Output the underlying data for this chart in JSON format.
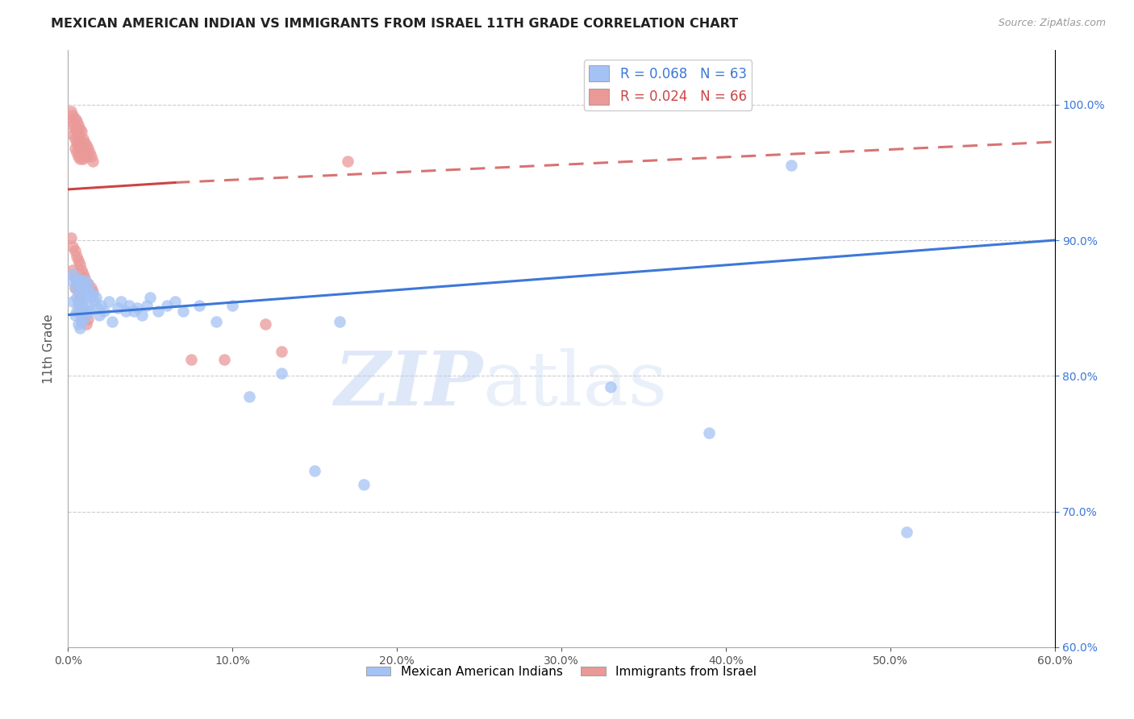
{
  "title": "MEXICAN AMERICAN INDIAN VS IMMIGRANTS FROM ISRAEL 11TH GRADE CORRELATION CHART",
  "source": "Source: ZipAtlas.com",
  "ylabel_label": "11th Grade",
  "xlim": [
    0.0,
    0.6
  ],
  "ylim": [
    0.6,
    1.04
  ],
  "legend_entries": [
    {
      "label": "R = 0.068   N = 63",
      "color": "#a4c2f4"
    },
    {
      "label": "R = 0.024   N = 66",
      "color": "#ea9999"
    }
  ],
  "blue_scatter": [
    [
      0.002,
      0.87
    ],
    [
      0.003,
      0.875
    ],
    [
      0.003,
      0.855
    ],
    [
      0.004,
      0.865
    ],
    [
      0.004,
      0.845
    ],
    [
      0.005,
      0.872
    ],
    [
      0.005,
      0.858
    ],
    [
      0.005,
      0.848
    ],
    [
      0.006,
      0.868
    ],
    [
      0.006,
      0.852
    ],
    [
      0.006,
      0.838
    ],
    [
      0.007,
      0.862
    ],
    [
      0.007,
      0.848
    ],
    [
      0.007,
      0.835
    ],
    [
      0.008,
      0.87
    ],
    [
      0.008,
      0.855
    ],
    [
      0.008,
      0.84
    ],
    [
      0.009,
      0.865
    ],
    [
      0.009,
      0.85
    ],
    [
      0.01,
      0.87
    ],
    [
      0.01,
      0.858
    ],
    [
      0.01,
      0.843
    ],
    [
      0.011,
      0.862
    ],
    [
      0.011,
      0.848
    ],
    [
      0.012,
      0.868
    ],
    [
      0.012,
      0.852
    ],
    [
      0.013,
      0.862
    ],
    [
      0.013,
      0.848
    ],
    [
      0.014,
      0.858
    ],
    [
      0.015,
      0.86
    ],
    [
      0.016,
      0.855
    ],
    [
      0.017,
      0.858
    ],
    [
      0.018,
      0.85
    ],
    [
      0.019,
      0.845
    ],
    [
      0.02,
      0.852
    ],
    [
      0.022,
      0.848
    ],
    [
      0.025,
      0.855
    ],
    [
      0.027,
      0.84
    ],
    [
      0.03,
      0.85
    ],
    [
      0.032,
      0.855
    ],
    [
      0.035,
      0.848
    ],
    [
      0.037,
      0.852
    ],
    [
      0.04,
      0.848
    ],
    [
      0.042,
      0.85
    ],
    [
      0.045,
      0.845
    ],
    [
      0.048,
      0.852
    ],
    [
      0.05,
      0.858
    ],
    [
      0.055,
      0.848
    ],
    [
      0.06,
      0.852
    ],
    [
      0.065,
      0.855
    ],
    [
      0.07,
      0.848
    ],
    [
      0.08,
      0.852
    ],
    [
      0.09,
      0.84
    ],
    [
      0.1,
      0.852
    ],
    [
      0.11,
      0.785
    ],
    [
      0.13,
      0.802
    ],
    [
      0.15,
      0.73
    ],
    [
      0.165,
      0.84
    ],
    [
      0.18,
      0.72
    ],
    [
      0.33,
      0.792
    ],
    [
      0.39,
      0.758
    ],
    [
      0.44,
      0.955
    ],
    [
      0.51,
      0.685
    ]
  ],
  "pink_scatter": [
    [
      0.002,
      0.995
    ],
    [
      0.002,
      0.988
    ],
    [
      0.003,
      0.992
    ],
    [
      0.003,
      0.985
    ],
    [
      0.003,
      0.978
    ],
    [
      0.004,
      0.99
    ],
    [
      0.004,
      0.982
    ],
    [
      0.004,
      0.975
    ],
    [
      0.004,
      0.968
    ],
    [
      0.005,
      0.988
    ],
    [
      0.005,
      0.98
    ],
    [
      0.005,
      0.972
    ],
    [
      0.005,
      0.965
    ],
    [
      0.006,
      0.985
    ],
    [
      0.006,
      0.978
    ],
    [
      0.006,
      0.97
    ],
    [
      0.006,
      0.962
    ],
    [
      0.007,
      0.982
    ],
    [
      0.007,
      0.975
    ],
    [
      0.007,
      0.968
    ],
    [
      0.007,
      0.96
    ],
    [
      0.008,
      0.98
    ],
    [
      0.008,
      0.972
    ],
    [
      0.008,
      0.965
    ],
    [
      0.009,
      0.975
    ],
    [
      0.009,
      0.968
    ],
    [
      0.009,
      0.96
    ],
    [
      0.01,
      0.972
    ],
    [
      0.01,
      0.965
    ],
    [
      0.011,
      0.97
    ],
    [
      0.011,
      0.962
    ],
    [
      0.012,
      0.968
    ],
    [
      0.013,
      0.965
    ],
    [
      0.014,
      0.962
    ],
    [
      0.015,
      0.958
    ],
    [
      0.003,
      0.878
    ],
    [
      0.004,
      0.872
    ],
    [
      0.004,
      0.865
    ],
    [
      0.005,
      0.868
    ],
    [
      0.006,
      0.862
    ],
    [
      0.006,
      0.855
    ],
    [
      0.007,
      0.858
    ],
    [
      0.007,
      0.848
    ],
    [
      0.008,
      0.852
    ],
    [
      0.008,
      0.842
    ],
    [
      0.009,
      0.848
    ],
    [
      0.01,
      0.845
    ],
    [
      0.011,
      0.838
    ],
    [
      0.012,
      0.842
    ],
    [
      0.075,
      0.812
    ],
    [
      0.095,
      0.812
    ],
    [
      0.12,
      0.838
    ],
    [
      0.13,
      0.818
    ],
    [
      0.17,
      0.958
    ],
    [
      0.002,
      0.902
    ],
    [
      0.003,
      0.895
    ],
    [
      0.004,
      0.892
    ],
    [
      0.005,
      0.888
    ],
    [
      0.006,
      0.885
    ],
    [
      0.007,
      0.882
    ],
    [
      0.008,
      0.878
    ],
    [
      0.009,
      0.875
    ],
    [
      0.01,
      0.872
    ],
    [
      0.012,
      0.868
    ],
    [
      0.014,
      0.865
    ],
    [
      0.015,
      0.862
    ]
  ],
  "blue_line": {
    "x": [
      0.0,
      0.6
    ],
    "y": [
      0.845,
      0.9
    ]
  },
  "pink_line_solid": {
    "x": [
      0.0,
      0.065
    ],
    "y": [
      0.9375,
      0.9425
    ]
  },
  "pink_line_dashed": {
    "x": [
      0.065,
      0.6
    ],
    "y": [
      0.9425,
      0.9725
    ]
  },
  "blue_color": "#a4c2f4",
  "pink_color": "#ea9999",
  "blue_line_color": "#3c78d8",
  "pink_line_color": "#cc4444",
  "watermark_zip": "ZIP",
  "watermark_atlas": "atlas",
  "background_color": "#ffffff",
  "grid_color": "#c0c0c0"
}
